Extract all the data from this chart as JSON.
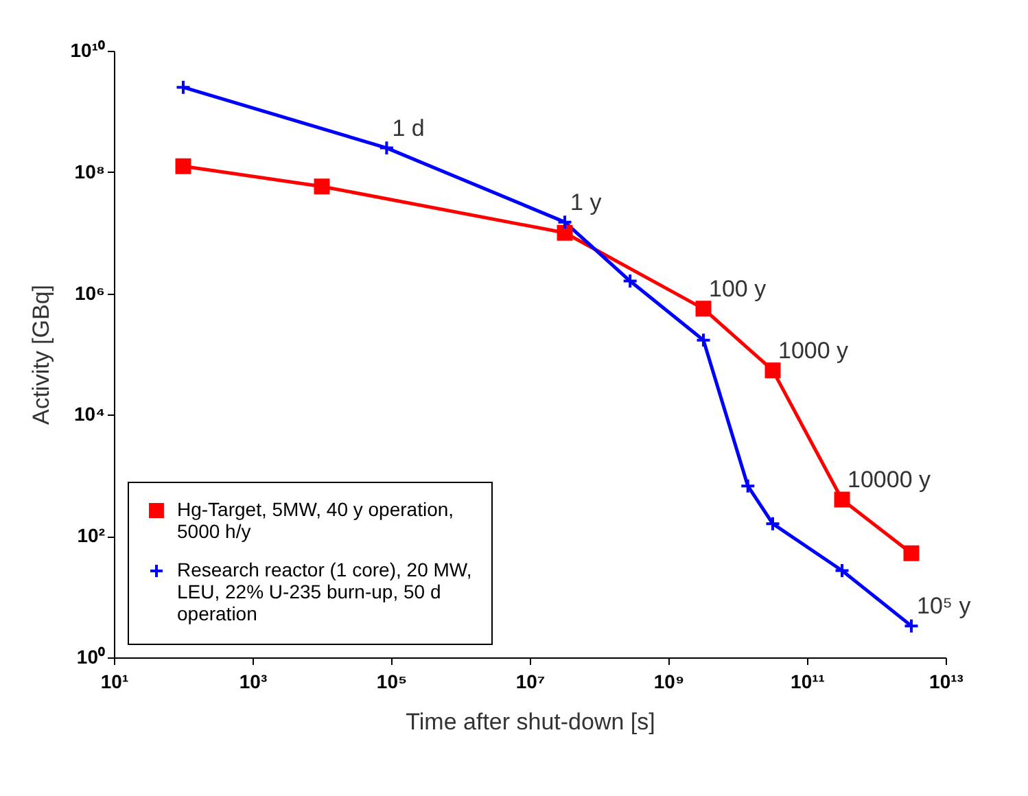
{
  "chart_data": {
    "type": "line",
    "xlabel": "Time after shut-down [s]",
    "ylabel": "Activity [GBq]",
    "log": "xy",
    "legend": "bottom left",
    "grid": false,
    "xlim": [
      10,
      10000000000000.0
    ],
    "ylim": [
      1,
      10000000000.0
    ],
    "xticks": [
      {
        "value": 10,
        "label": "10¹"
      },
      {
        "value": 1000,
        "label": "10³"
      },
      {
        "value": 100000.0,
        "label": "10⁵"
      },
      {
        "value": 10000000.0,
        "label": "10⁷"
      },
      {
        "value": 1000000000.0,
        "label": "10⁹"
      },
      {
        "value": 100000000000.0,
        "label": "10¹¹"
      },
      {
        "value": 10000000000000.0,
        "label": "10¹³"
      }
    ],
    "yticks": [
      {
        "value": 1,
        "label": "10⁰"
      },
      {
        "value": 100,
        "label": "10²"
      },
      {
        "value": 10000.0,
        "label": "10⁴"
      },
      {
        "value": 1000000.0,
        "label": "10⁶"
      },
      {
        "value": 100000000.0,
        "label": "10⁸"
      },
      {
        "value": 10000000000.0,
        "label": "10¹⁰"
      }
    ],
    "series": [
      {
        "name": "Hg-Target, 5MW, 40 y operation, 5000 h/y",
        "color": "#ff0000",
        "marker": "square",
        "x": [
          100,
          10000.0,
          32000000.0,
          3200000000.0,
          32000000000.0,
          320000000000.0,
          3200000000000.0
        ],
        "values": [
          125000000.0,
          58000000.0,
          10000000.0,
          560000.0,
          54000.0,
          400,
          52
        ]
      },
      {
        "name": "Research reactor (1 core), 20 MW, LEU, 22% U-235 burn-up, 50 d operation",
        "color": "#0000ff",
        "marker": "cross",
        "x": [
          100,
          86000.0,
          32000000.0,
          280000000.0,
          3200000000.0,
          14000000000.0,
          32000000000.0,
          320000000000.0,
          3200000000000.0
        ],
        "values": [
          2500000000.0,
          250000000.0,
          15000000.0,
          1600000.0,
          170000.0,
          670,
          160,
          27,
          3.3
        ]
      }
    ],
    "annotations": [
      {
        "text": "1 d",
        "x": 86000.0,
        "y": 250000000.0
      },
      {
        "text": "1 y",
        "x": 32000000.0,
        "y": 15000000.0
      },
      {
        "text": "100 y",
        "x": 3200000000.0,
        "y": 560000.0
      },
      {
        "text": "1000 y",
        "x": 32000000000.0,
        "y": 54000.0
      },
      {
        "text": "10000 y",
        "x": 320000000000.0,
        "y": 400
      },
      {
        "text": "10⁵ y",
        "x": 3200000000000.0,
        "y": 3.3
      }
    ]
  }
}
